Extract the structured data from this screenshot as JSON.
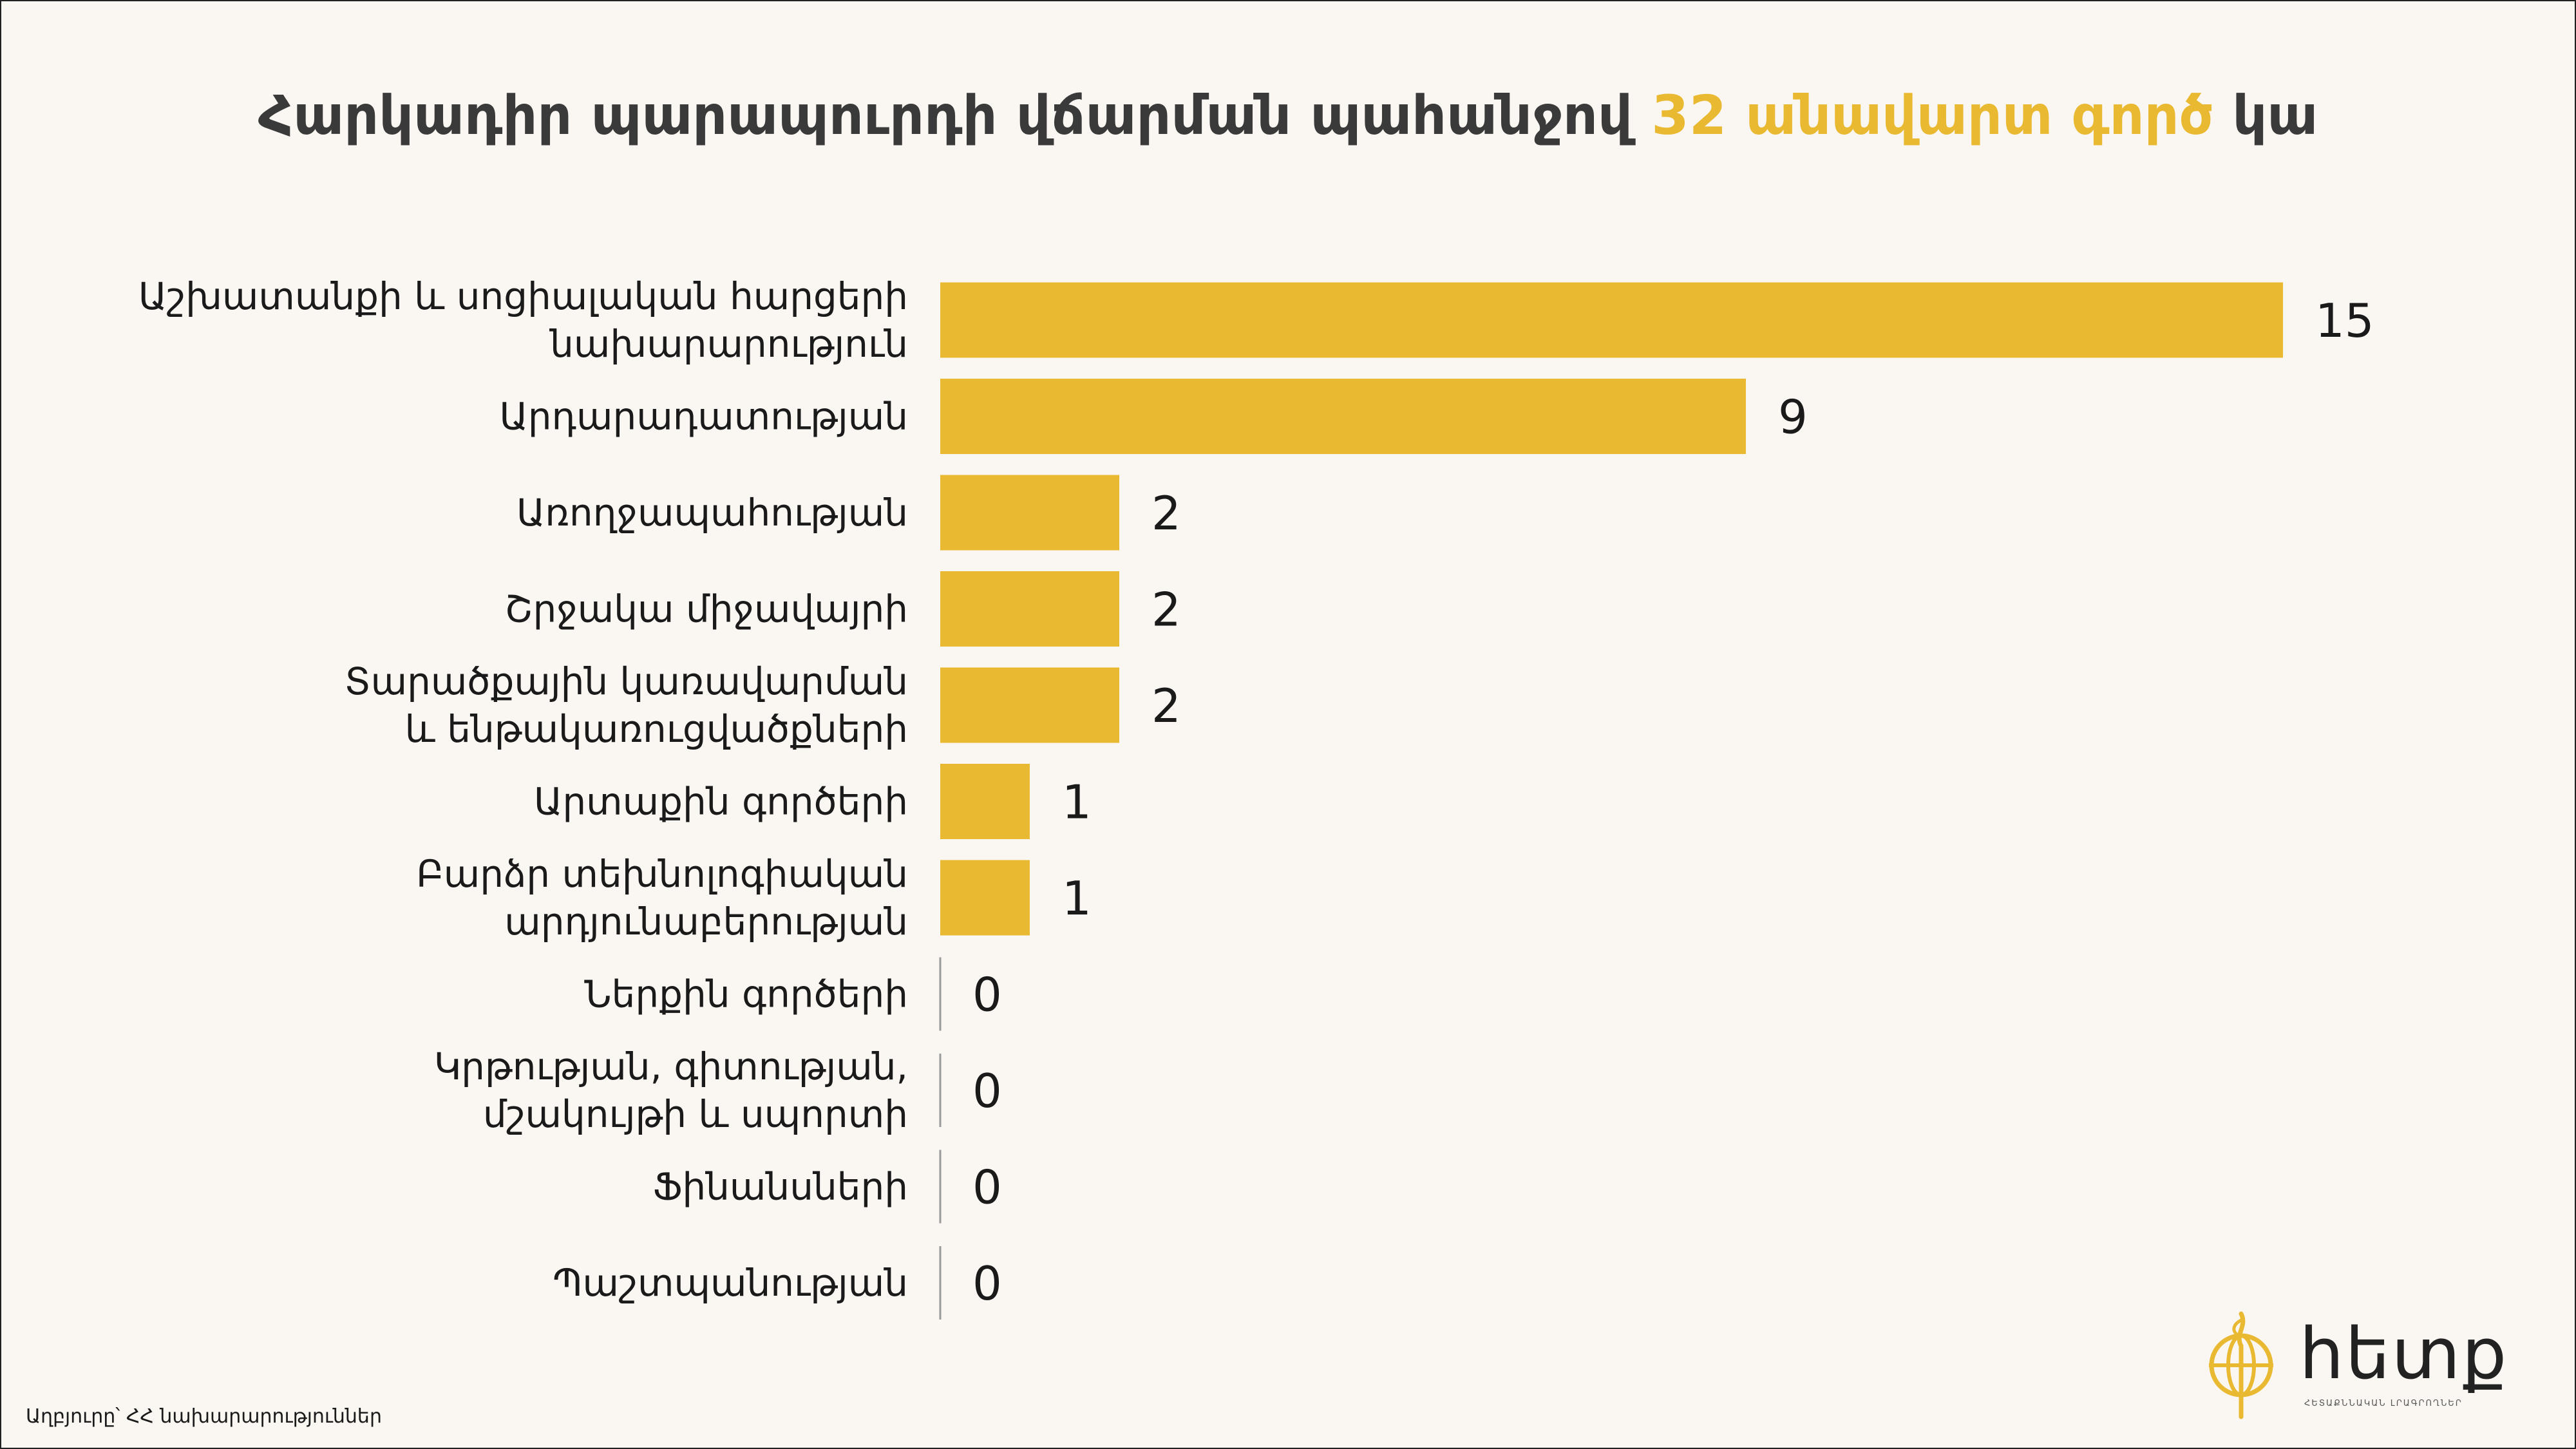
{
  "title": {
    "main": "Հարկադիր պարապուրդի վճարման պահանջով ",
    "highlight": "32 անավարտ գործ",
    "tail": " կա"
  },
  "colors": {
    "bar": "#e9b932",
    "zero_line": "#9a9a9a",
    "text": "#1a1a1a",
    "background": "#faf6f2"
  },
  "chart_data": {
    "type": "bar",
    "orientation": "horizontal",
    "categories": [
      [
        "Աշխատանքի և սոցիալական հարցերի",
        "նախարարություն"
      ],
      [
        "Արդարադատության"
      ],
      [
        "Առողջապահության"
      ],
      [
        "Շրջակա միջավայրի"
      ],
      [
        "Տարածքային կառավարման",
        "և ենթակառուցվածքների"
      ],
      [
        "Արտաքին գործերի"
      ],
      [
        "Բարձր տեխնոլոգիական",
        "արդյունաբերության"
      ],
      [
        "Ներքին գործերի"
      ],
      [
        "Կրթության, գիտության,",
        "մշակույթի և սպորտի"
      ],
      [
        "Ֆինանսների"
      ],
      [
        "Պաշտպանության"
      ]
    ],
    "values": [
      15,
      9,
      2,
      2,
      2,
      1,
      1,
      0,
      0,
      0,
      0
    ],
    "xlim": [
      0,
      15
    ],
    "data_labels": true,
    "grid": false,
    "legend": "none"
  },
  "source": "Աղբյուրը՝ ՀՀ նախարարություններ",
  "logo": {
    "text": "հետք",
    "subtitle": "ՀԵՏԱՔՆՆԱԿԱՆ ԼՐԱԳՐՈՂՆԵՐ"
  }
}
